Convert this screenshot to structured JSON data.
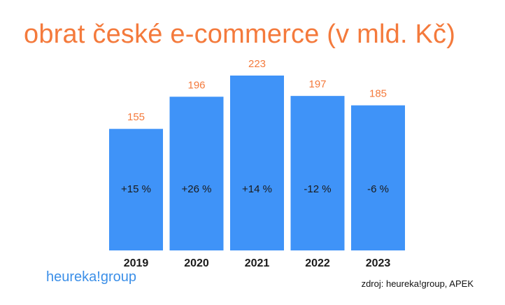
{
  "title": "obrat české e-commerce (v mld. Kč)",
  "logo_text": "heureka!group",
  "source": "zdroj: heureka!group, APEK",
  "colors": {
    "bar": "#3f93f8",
    "accent": "#f47a3c",
    "text": "#1a1a1a"
  },
  "chart_data": {
    "type": "bar",
    "categories": [
      "2019",
      "2020",
      "2021",
      "2022",
      "2023"
    ],
    "values": [
      155,
      196,
      223,
      197,
      185
    ],
    "value_labels": [
      "155",
      "196",
      "223",
      "197",
      "185"
    ],
    "change_labels": [
      "+15 %",
      "+26 %",
      "+14 %",
      "-12 %",
      "-6 %"
    ],
    "title": "obrat české e-commerce (v mld. Kč)",
    "xlabel": "",
    "ylabel": "",
    "ylim": [
      0,
      223
    ],
    "grid": false
  }
}
